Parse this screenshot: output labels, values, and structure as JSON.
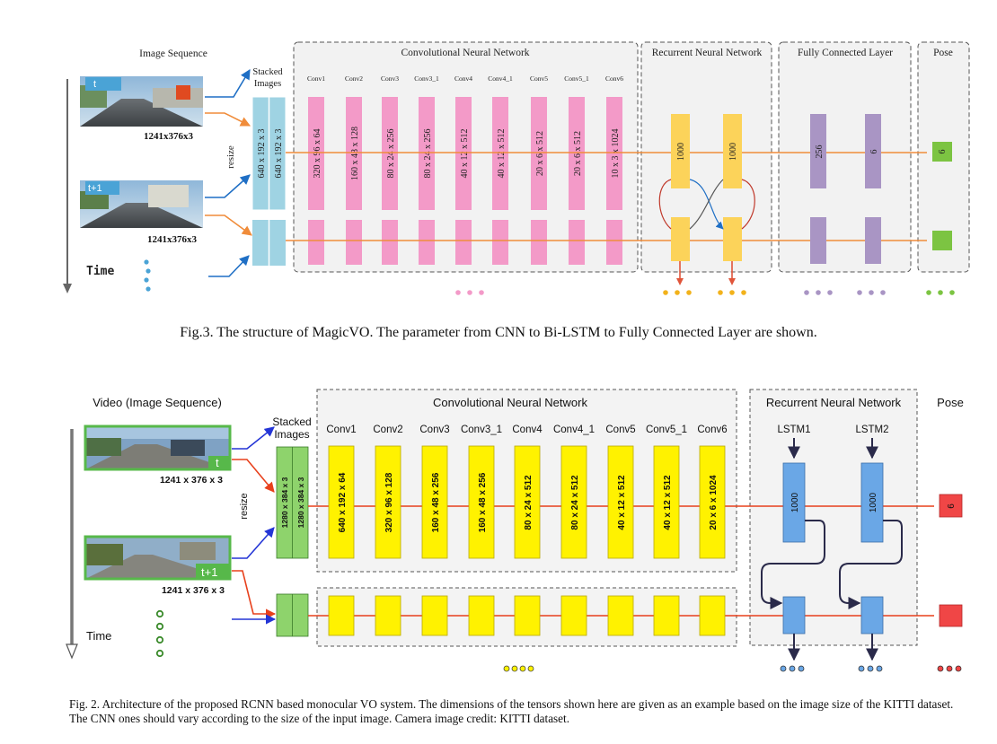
{
  "figure1": {
    "image_sequence_label": "Image Sequence",
    "frame_t_label": "t",
    "frame_t1_label": "t+1",
    "frame_size": "1241x376x3",
    "time_label": "Time",
    "resize_label": "resize",
    "stacked_label_1": "Stacked",
    "stacked_label_2": "Images",
    "stacked_dims": [
      "640 x 192 x 3",
      "640 x 192 x 3"
    ],
    "cnn_title": "Convolutional Neural Network",
    "rnn_title": "Recurrent Neural Network",
    "fc_title": "Fully Connected Layer",
    "pose_title": "Pose",
    "conv_names": [
      "Conv1",
      "Conv2",
      "Conv3",
      "Conv3_1",
      "Conv4",
      "Conv4_1",
      "Conv5",
      "Conv5_1",
      "Conv6"
    ],
    "conv_dims": [
      "320 x 96 x 64",
      "160 x 48 x 128",
      "80 x 24 x 256",
      "80 x 24 x 256",
      "40 x 12 x 512",
      "40 x 12 x 512",
      "20 x 6 x 512",
      "20 x 6 x 512",
      "10 x 3 x 1024"
    ],
    "rnn_dims": [
      "1000",
      "1000"
    ],
    "fc_dims": [
      "256",
      "6"
    ],
    "pose_dim": "6",
    "caption": "Fig.3. The structure of MagicVO. The parameter from CNN to Bi-LSTM to Fully Connected Layer are shown."
  },
  "figure2": {
    "video_label": "Video (Image Sequence)",
    "frame_t_label": "t",
    "frame_t1_label": "t+1",
    "frame_size": "1241 x 376 x 3",
    "time_label": "Time",
    "resize_label": "resize",
    "stacked_label_1": "Stacked",
    "stacked_label_2": "Images",
    "stacked_dims": [
      "1280 x 384 x 3",
      "1280 x 384 x 3"
    ],
    "cnn_title": "Convolutional Neural Network",
    "rnn_title": "Recurrent Neural Network",
    "pose_title": "Pose",
    "conv_names": [
      "Conv1",
      "Conv2",
      "Conv3",
      "Conv3_1",
      "Conv4",
      "Conv4_1",
      "Conv5",
      "Conv5_1",
      "Conv6"
    ],
    "conv_dims": [
      "640 x 192 x 64",
      "320 x 96 x 128",
      "160 x 48 x 256",
      "160 x 48 x 256",
      "80 x 24 x 512",
      "80 x 24 x 512",
      "40 x 12 x 512",
      "40 x 12 x 512",
      "20 x 6 x 1024"
    ],
    "lstm_names": [
      "LSTM1",
      "LSTM2"
    ],
    "lstm_dims": [
      "1000",
      "1000"
    ],
    "pose_dim": "6",
    "caption": "Fig. 2.   Architecture of the proposed RCNN based monocular VO system. The dimensions of the tensors shown here are given as an example based on the image size of the KITTI dataset. The CNN ones should vary according to the size of the input image. Camera image credit: KITTI dataset."
  },
  "colors": {
    "fig1_conv": "#f39ac8",
    "fig1_rnn": "#fcd35a",
    "fig1_fc": "#a995c4",
    "fig1_pose": "#7cc442",
    "fig1_stacked": "#9fd3e3",
    "fig1_arrow": "#f08c3a",
    "fig1_blue_arrow": "#1f6fc5",
    "fig2_conv": "#fff200",
    "fig2_stacked": "#8ed36c",
    "fig2_lstm": "#6aa7e6",
    "fig2_pose": "#f04646",
    "fig2_arrow": "#e8401c",
    "fig2_blue_arrow": "#2435d6"
  }
}
